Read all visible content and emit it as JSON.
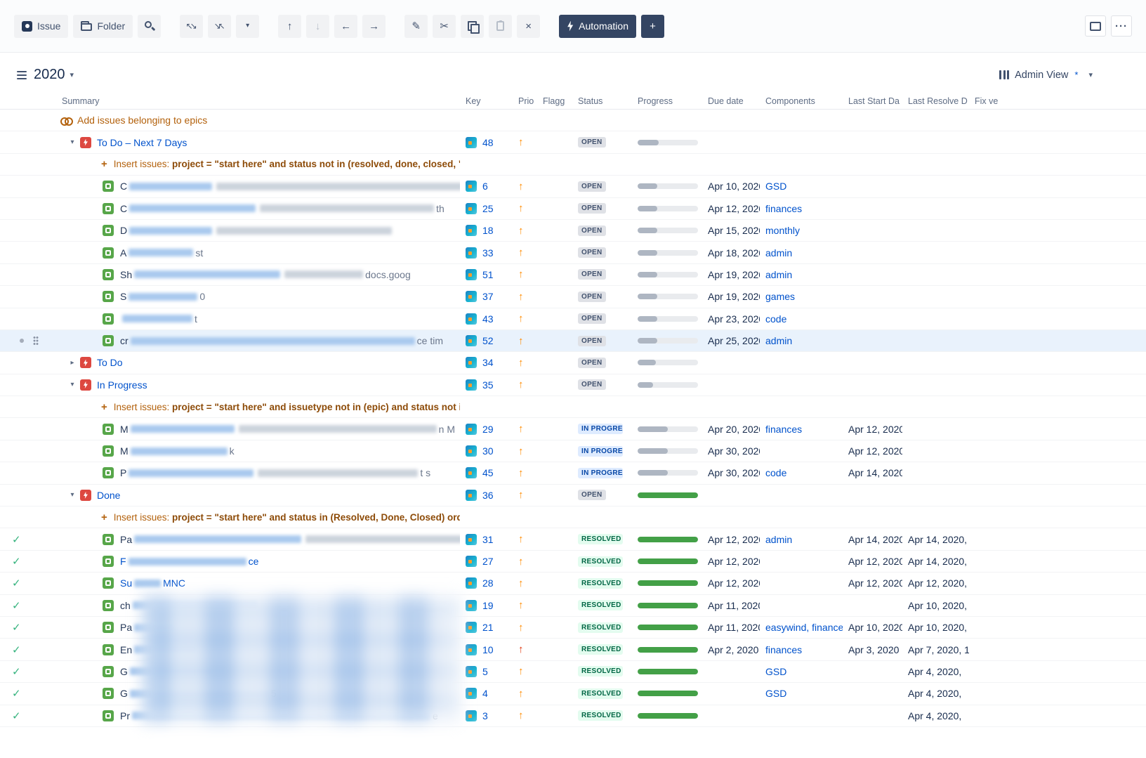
{
  "toolbar": {
    "issue_label": "Issue",
    "folder_label": "Folder",
    "automation_label": "Automation"
  },
  "titlebar": {
    "structure_name": "2020",
    "view_name": "Admin View",
    "view_modified_marker": "*"
  },
  "columns": [
    "Summary",
    "Key",
    "Prio",
    "Flagg",
    "Status",
    "Progress",
    "Due date",
    "Components",
    "Last Start Da",
    "Last Resolve D",
    "Fix ve"
  ],
  "colors": {
    "accent": "#0052cc",
    "generator_orange": "#b3610c",
    "epic_red": "#dd4840",
    "task_green": "#57a649",
    "progress_green": "#43a047",
    "progress_gray": "#aeb6c2",
    "status_open_bg": "#dfe1e6",
    "status_open_fg": "#42526e",
    "status_inprogress_bg": "#deebff",
    "status_inprogress_fg": "#0747a6",
    "status_resolved_bg": "#e3fcef",
    "status_resolved_fg": "#006644",
    "resolved_check": "#36b37e",
    "priority_orange": "#ff8b00",
    "priority_red": "#de350b"
  },
  "rows": [
    {
      "type": "add",
      "label": "Add issues belonging to epics"
    },
    {
      "type": "epic",
      "expanded": true,
      "summary": "To Do – Next 7 Days",
      "key": "48",
      "priority": "orange",
      "status": "OPEN",
      "progress": {
        "pct": 35,
        "color": "gray"
      }
    },
    {
      "type": "insert",
      "label": "Insert issues:",
      "query": "project = \"start here\" and status not in (resolved, done, closed, \""
    },
    {
      "type": "task",
      "summary": {
        "prefix": "C",
        "redacts": [
          [
            118,
            "b"
          ],
          [
            368,
            "g"
          ]
        ]
      },
      "key": "6",
      "priority": "orange",
      "status": "OPEN",
      "progress": {
        "pct": 33,
        "color": "gray"
      },
      "due": "Apr 10, 2020",
      "components": "GSD"
    },
    {
      "type": "task",
      "summary": {
        "prefix": "C",
        "redacts": [
          [
            180,
            "b"
          ],
          [
            248,
            "g"
          ]
        ],
        "suffix": "th"
      },
      "key": "25",
      "priority": "orange",
      "status": "OPEN",
      "progress": {
        "pct": 33,
        "color": "gray"
      },
      "due": "Apr 12, 2020",
      "components": "finances"
    },
    {
      "type": "task",
      "summary": {
        "prefix": "D",
        "redacts": [
          [
            118,
            "b"
          ],
          [
            250,
            "g"
          ]
        ]
      },
      "key": "18",
      "priority": "orange",
      "status": "OPEN",
      "progress": {
        "pct": 33,
        "color": "gray"
      },
      "due": "Apr 15, 2020",
      "components": "monthly"
    },
    {
      "type": "task",
      "summary": {
        "prefix": "A",
        "redacts": [
          [
            92,
            "b"
          ]
        ],
        "suffix": "st"
      },
      "key": "33",
      "priority": "orange",
      "status": "OPEN",
      "progress": {
        "pct": 33,
        "color": "gray"
      },
      "due": "Apr 18, 2020",
      "components": "admin"
    },
    {
      "type": "task",
      "summary": {
        "prefix": "Sh",
        "redacts": [
          [
            208,
            "b"
          ],
          [
            112,
            "g"
          ]
        ],
        "suffix": "docs.goog"
      },
      "key": "51",
      "priority": "orange",
      "status": "OPEN",
      "progress": {
        "pct": 33,
        "color": "gray"
      },
      "due": "Apr 19, 2020",
      "components": "admin"
    },
    {
      "type": "task",
      "summary": {
        "prefix": "S",
        "redacts": [
          [
            98,
            "b"
          ]
        ],
        "suffix": "0"
      },
      "key": "37",
      "priority": "orange",
      "status": "OPEN",
      "progress": {
        "pct": 33,
        "color": "gray"
      },
      "due": "Apr 19, 2020",
      "components": "games"
    },
    {
      "type": "task",
      "summary": {
        "redacts": [
          [
            100,
            "b"
          ]
        ],
        "suffix": "t"
      },
      "key": "43",
      "priority": "orange",
      "status": "OPEN",
      "progress": {
        "pct": 33,
        "color": "gray"
      },
      "due": "Apr 23, 2020",
      "components": "code"
    },
    {
      "type": "task",
      "selected": true,
      "summary": {
        "prefix": "cr",
        "redacts": [
          [
            405,
            "b"
          ]
        ],
        "suffix": "ce tim"
      },
      "key": "52",
      "priority": "orange",
      "status": "OPEN",
      "progress": {
        "pct": 33,
        "color": "gray"
      },
      "due": "Apr 25, 2020",
      "components": "admin"
    },
    {
      "type": "epic",
      "expanded": false,
      "summary": "To Do",
      "key": "34",
      "priority": "orange",
      "status": "OPEN",
      "progress": {
        "pct": 30,
        "color": "gray"
      }
    },
    {
      "type": "epic",
      "expanded": true,
      "summary": "In Progress",
      "key": "35",
      "priority": "orange",
      "status": "OPEN",
      "progress": {
        "pct": 26,
        "color": "gray"
      }
    },
    {
      "type": "insert",
      "label": "Insert issues:",
      "query": "project = \"start here\" and issuetype not in (epic) and status not in"
    },
    {
      "type": "task",
      "summary": {
        "prefix": "M",
        "redacts": [
          [
            148,
            "b"
          ],
          [
            282,
            "g"
          ]
        ],
        "suffix": "n M"
      },
      "key": "29",
      "priority": "orange",
      "status": "IN PROGRESS",
      "progress": {
        "pct": 50,
        "color": "gray"
      },
      "due": "Apr 20, 2020",
      "components": "finances",
      "last_start": "Apr 12, 2020"
    },
    {
      "type": "task",
      "summary": {
        "prefix": "M",
        "redacts": [
          [
            138,
            "b"
          ]
        ],
        "suffix": "k"
      },
      "key": "30",
      "priority": "orange",
      "status": "IN PROGRESS",
      "progress": {
        "pct": 50,
        "color": "gray"
      },
      "due": "Apr 30, 2020",
      "last_start": "Apr 12, 2020"
    },
    {
      "type": "task",
      "summary": {
        "prefix": "P",
        "redacts": [
          [
            178,
            "b"
          ],
          [
            228,
            "g"
          ]
        ],
        "suffix": "t s"
      },
      "key": "45",
      "priority": "orange",
      "status": "IN PROGRESS",
      "progress": {
        "pct": 50,
        "color": "gray"
      },
      "due": "Apr 30, 2020",
      "components": "code",
      "last_start": "Apr 14, 2020"
    },
    {
      "type": "epic",
      "expanded": true,
      "summary": "Done",
      "key": "36",
      "priority": "orange",
      "status": "OPEN",
      "progress": {
        "pct": 100,
        "color": "green"
      }
    },
    {
      "type": "insert",
      "label": "Insert issues:",
      "query": "project = \"start here\" and status in (Resolved, Done, Closed) orde"
    },
    {
      "type": "task",
      "check": true,
      "summary": {
        "prefix": "Pa",
        "redacts": [
          [
            238,
            "b"
          ],
          [
            228,
            "g"
          ]
        ]
      },
      "key": "31",
      "priority": "orange",
      "status": "RESOLVED",
      "progress": {
        "pct": 100,
        "color": "green"
      },
      "due": "Apr 12, 2020",
      "components": "admin",
      "last_start": "Apr 14, 2020",
      "last_resolve": "Apr 14, 2020,"
    },
    {
      "type": "task",
      "check": true,
      "summary": {
        "prefix": "F",
        "redacts": [
          [
            168,
            "b"
          ]
        ],
        "suffix": "ce",
        "link": true
      },
      "key": "27",
      "priority": "orange",
      "status": "RESOLVED",
      "progress": {
        "pct": 100,
        "color": "green"
      },
      "due": "Apr 12, 2020",
      "last_start": "Apr 12, 2020",
      "last_resolve": "Apr 14, 2020,"
    },
    {
      "type": "task",
      "check": true,
      "summary": {
        "prefix": "Su",
        "redacts": [
          [
            38,
            "b"
          ]
        ],
        "suffix": "MNC",
        "link": true
      },
      "key": "28",
      "priority": "orange",
      "status": "RESOLVED",
      "progress": {
        "pct": 100,
        "color": "green"
      },
      "due": "Apr 12, 2020",
      "last_start": "Apr 12, 2020",
      "last_resolve": "Apr 12, 2020,"
    },
    {
      "type": "task",
      "check": true,
      "summary": {
        "prefix": "ch",
        "redacts": [
          [
            178,
            "b"
          ]
        ]
      },
      "key": "19",
      "priority": "orange",
      "status": "RESOLVED",
      "progress": {
        "pct": 100,
        "color": "green"
      },
      "due": "Apr 11, 2020",
      "last_resolve": "Apr 10, 2020,"
    },
    {
      "type": "task",
      "check": true,
      "summary": {
        "prefix": "Pa",
        "redacts": [
          [
            58,
            "b"
          ]
        ]
      },
      "key": "21",
      "priority": "orange",
      "status": "RESOLVED",
      "progress": {
        "pct": 100,
        "color": "green"
      },
      "due": "Apr 11, 2020",
      "components": "easywind, finance",
      "last_start": "Apr 10, 2020",
      "last_resolve": "Apr 10, 2020,"
    },
    {
      "type": "task",
      "check": true,
      "summary": {
        "prefix": "En",
        "redacts": [
          [
            88,
            "b"
          ]
        ]
      },
      "key": "10",
      "priority": "red",
      "status": "RESOLVED",
      "progress": {
        "pct": 100,
        "color": "green"
      },
      "due": "Apr 2, 2020",
      "components": "finances",
      "last_start": "Apr 3, 2020",
      "last_resolve": "Apr 7, 2020, 1"
    },
    {
      "type": "task",
      "check": true,
      "summary": {
        "prefix": "G",
        "redacts": [
          [
            118,
            "b"
          ]
        ]
      },
      "key": "5",
      "priority": "orange",
      "status": "RESOLVED",
      "progress": {
        "pct": 100,
        "color": "green"
      },
      "components": "GSD",
      "last_resolve": "Apr 4, 2020,"
    },
    {
      "type": "task",
      "check": true,
      "summary": {
        "prefix": "G",
        "redacts": [
          [
            198,
            "b"
          ]
        ],
        "suffix": "5"
      },
      "key": "4",
      "priority": "orange",
      "status": "RESOLVED",
      "progress": {
        "pct": 100,
        "color": "green"
      },
      "components": "GSD",
      "last_resolve": "Apr 4, 2020,"
    },
    {
      "type": "task",
      "check": true,
      "summary": {
        "prefix": "Pr",
        "redacts": [
          [
            425,
            "b"
          ]
        ],
        "suffix": "e"
      },
      "key": "3",
      "priority": "orange",
      "status": "RESOLVED",
      "progress": {
        "pct": 100,
        "color": "green"
      },
      "last_resolve": "Apr 4, 2020,"
    }
  ]
}
